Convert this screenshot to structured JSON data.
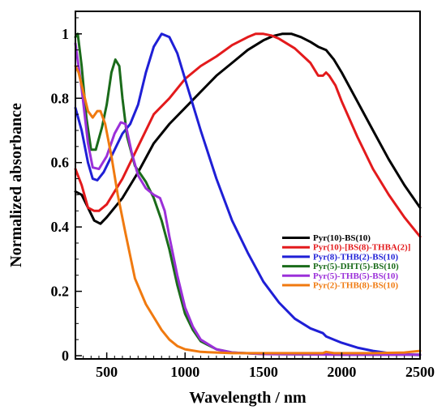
{
  "chart_data": {
    "type": "line",
    "title": "",
    "xlabel": "Wavelength / nm",
    "ylabel": "Normalized absorbance",
    "xlim": [
      300,
      2500
    ],
    "ylim": [
      -0.01,
      1.07
    ],
    "x_ticks": [
      500,
      1000,
      1500,
      2000,
      2500
    ],
    "y_ticks": [
      0,
      0.2,
      0.4,
      0.6,
      0.8,
      1
    ],
    "x_tick_labels": [
      "500",
      "1000",
      "1500",
      "2000",
      "2500"
    ],
    "y_tick_labels": [
      "0",
      "0.2",
      "0.4",
      "0.6",
      "0.8",
      "1"
    ],
    "grid": false,
    "legend_position": "center-right",
    "series": [
      {
        "name": "Pyr(10)-BS(10)",
        "color": "#000000",
        "points": [
          [
            300,
            0.51
          ],
          [
            340,
            0.5
          ],
          [
            380,
            0.46
          ],
          [
            420,
            0.42
          ],
          [
            460,
            0.41
          ],
          [
            500,
            0.43
          ],
          [
            600,
            0.49
          ],
          [
            700,
            0.57
          ],
          [
            800,
            0.66
          ],
          [
            900,
            0.72
          ],
          [
            1000,
            0.77
          ],
          [
            1100,
            0.82
          ],
          [
            1200,
            0.87
          ],
          [
            1300,
            0.91
          ],
          [
            1400,
            0.95
          ],
          [
            1500,
            0.98
          ],
          [
            1560,
            0.993
          ],
          [
            1620,
            1.0
          ],
          [
            1680,
            1.0
          ],
          [
            1740,
            0.99
          ],
          [
            1800,
            0.975
          ],
          [
            1850,
            0.96
          ],
          [
            1900,
            0.95
          ],
          [
            1950,
            0.92
          ],
          [
            2000,
            0.88
          ],
          [
            2100,
            0.79
          ],
          [
            2200,
            0.7
          ],
          [
            2300,
            0.61
          ],
          [
            2400,
            0.53
          ],
          [
            2500,
            0.46
          ]
        ]
      },
      {
        "name": "Pyr(10)-[BS(8)-THBA(2)]",
        "color": "#e31a1c",
        "points": [
          [
            300,
            0.58
          ],
          [
            340,
            0.53
          ],
          [
            380,
            0.46
          ],
          [
            420,
            0.45
          ],
          [
            450,
            0.45
          ],
          [
            500,
            0.47
          ],
          [
            600,
            0.55
          ],
          [
            700,
            0.65
          ],
          [
            800,
            0.75
          ],
          [
            900,
            0.8
          ],
          [
            1000,
            0.86
          ],
          [
            1100,
            0.9
          ],
          [
            1200,
            0.93
          ],
          [
            1300,
            0.965
          ],
          [
            1400,
            0.99
          ],
          [
            1450,
            1.0
          ],
          [
            1500,
            1.0
          ],
          [
            1550,
            0.995
          ],
          [
            1600,
            0.985
          ],
          [
            1700,
            0.955
          ],
          [
            1800,
            0.91
          ],
          [
            1850,
            0.87
          ],
          [
            1880,
            0.87
          ],
          [
            1900,
            0.88
          ],
          [
            1920,
            0.87
          ],
          [
            1960,
            0.84
          ],
          [
            2000,
            0.79
          ],
          [
            2100,
            0.68
          ],
          [
            2200,
            0.58
          ],
          [
            2300,
            0.5
          ],
          [
            2400,
            0.43
          ],
          [
            2500,
            0.37
          ]
        ]
      },
      {
        "name": "Pyr(8)-THB(2)-BS(10)",
        "color": "#1f1fd6",
        "points": [
          [
            300,
            0.77
          ],
          [
            340,
            0.7
          ],
          [
            380,
            0.6
          ],
          [
            410,
            0.55
          ],
          [
            440,
            0.545
          ],
          [
            480,
            0.57
          ],
          [
            540,
            0.63
          ],
          [
            600,
            0.69
          ],
          [
            650,
            0.72
          ],
          [
            700,
            0.78
          ],
          [
            750,
            0.88
          ],
          [
            800,
            0.96
          ],
          [
            850,
            1.0
          ],
          [
            900,
            0.99
          ],
          [
            950,
            0.94
          ],
          [
            1000,
            0.86
          ],
          [
            1100,
            0.7
          ],
          [
            1200,
            0.55
          ],
          [
            1300,
            0.42
          ],
          [
            1400,
            0.32
          ],
          [
            1500,
            0.23
          ],
          [
            1600,
            0.165
          ],
          [
            1700,
            0.115
          ],
          [
            1800,
            0.085
          ],
          [
            1880,
            0.07
          ],
          [
            1900,
            0.06
          ],
          [
            1950,
            0.05
          ],
          [
            2000,
            0.04
          ],
          [
            2100,
            0.025
          ],
          [
            2200,
            0.015
          ],
          [
            2300,
            0.008
          ],
          [
            2400,
            0.004
          ],
          [
            2500,
            0.002
          ]
        ]
      },
      {
        "name": "Pyr(5)-DHT(5)-BS(10)",
        "color": "#1a6b1a",
        "points": [
          [
            300,
            0.99
          ],
          [
            315,
            1.0
          ],
          [
            340,
            0.9
          ],
          [
            370,
            0.74
          ],
          [
            400,
            0.64
          ],
          [
            430,
            0.64
          ],
          [
            470,
            0.71
          ],
          [
            500,
            0.78
          ],
          [
            530,
            0.88
          ],
          [
            555,
            0.92
          ],
          [
            580,
            0.9
          ],
          [
            600,
            0.8
          ],
          [
            630,
            0.68
          ],
          [
            680,
            0.59
          ],
          [
            750,
            0.54
          ],
          [
            800,
            0.49
          ],
          [
            850,
            0.42
          ],
          [
            900,
            0.33
          ],
          [
            950,
            0.22
          ],
          [
            1000,
            0.13
          ],
          [
            1050,
            0.08
          ],
          [
            1100,
            0.045
          ],
          [
            1200,
            0.02
          ],
          [
            1300,
            0.01
          ],
          [
            1500,
            0.005
          ],
          [
            1800,
            0.004
          ],
          [
            2000,
            0.003
          ],
          [
            2500,
            0.003
          ]
        ]
      },
      {
        "name": "Pyr(5)-THB(5)-BS(10)",
        "color": "#9b30d9",
        "points": [
          [
            300,
            0.97
          ],
          [
            340,
            0.83
          ],
          [
            380,
            0.66
          ],
          [
            410,
            0.585
          ],
          [
            450,
            0.58
          ],
          [
            500,
            0.62
          ],
          [
            550,
            0.69
          ],
          [
            590,
            0.725
          ],
          [
            620,
            0.72
          ],
          [
            660,
            0.63
          ],
          [
            700,
            0.56
          ],
          [
            750,
            0.52
          ],
          [
            800,
            0.5
          ],
          [
            840,
            0.49
          ],
          [
            870,
            0.45
          ],
          [
            900,
            0.37
          ],
          [
            950,
            0.25
          ],
          [
            1000,
            0.15
          ],
          [
            1050,
            0.09
          ],
          [
            1100,
            0.05
          ],
          [
            1200,
            0.02
          ],
          [
            1300,
            0.01
          ],
          [
            1500,
            0.005
          ],
          [
            1800,
            0.004
          ],
          [
            2000,
            0.003
          ],
          [
            2500,
            0.003
          ]
        ]
      },
      {
        "name": "Pyr(2)-THB(8)-BS(10)",
        "color": "#f07a10",
        "points": [
          [
            300,
            0.9
          ],
          [
            320,
            0.88
          ],
          [
            350,
            0.82
          ],
          [
            380,
            0.76
          ],
          [
            410,
            0.74
          ],
          [
            440,
            0.76
          ],
          [
            460,
            0.76
          ],
          [
            490,
            0.72
          ],
          [
            530,
            0.62
          ],
          [
            570,
            0.5
          ],
          [
            620,
            0.38
          ],
          [
            680,
            0.24
          ],
          [
            750,
            0.16
          ],
          [
            800,
            0.12
          ],
          [
            850,
            0.08
          ],
          [
            900,
            0.05
          ],
          [
            950,
            0.03
          ],
          [
            1000,
            0.02
          ],
          [
            1100,
            0.012
          ],
          [
            1300,
            0.008
          ],
          [
            1600,
            0.008
          ],
          [
            1880,
            0.008
          ],
          [
            1900,
            0.012
          ],
          [
            1950,
            0.008
          ],
          [
            2000,
            0.008
          ],
          [
            2200,
            0.008
          ],
          [
            2400,
            0.01
          ],
          [
            2500,
            0.015
          ]
        ]
      }
    ]
  }
}
